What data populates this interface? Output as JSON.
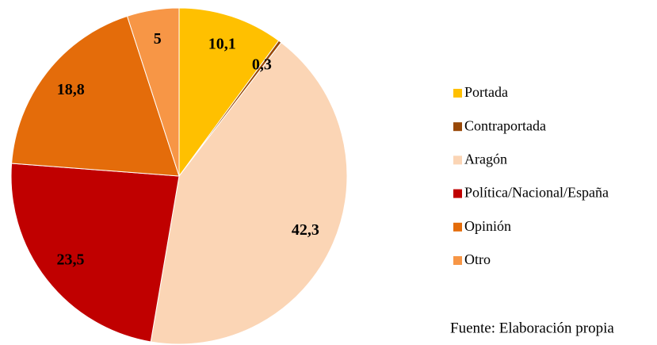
{
  "chart_data": {
    "type": "pie",
    "categories": [
      "Portada",
      "Contraportada",
      "Aragón",
      "Política/Nacional/España",
      "Opinión",
      "Otro"
    ],
    "values": [
      10.1,
      0.3,
      42.3,
      23.5,
      18.8,
      5
    ],
    "value_labels": [
      "10,1",
      "0,3",
      "42,3",
      "23,5",
      "18,8",
      "5"
    ],
    "colors": [
      "#FFC000",
      "#984807",
      "#FBD5B5",
      "#C00000",
      "#E46C0A",
      "#F79646"
    ],
    "legend": "right",
    "source": "Fuente: Elaboración propia"
  }
}
